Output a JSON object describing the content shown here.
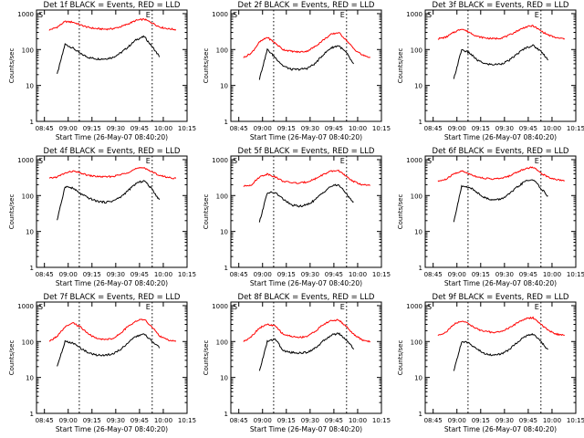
{
  "shared": {
    "xlabel": "Start Time (26-May-07 08:40:20)",
    "ylabel": "Counts/sec",
    "x_ticks": [
      "08:45",
      "09:00",
      "09:15",
      "09:30",
      "09:45",
      "10:00",
      "10:15"
    ],
    "y_ticks": [
      "1",
      "10",
      "100",
      "1000"
    ],
    "marker_left": "S",
    "marker_right": "E",
    "colors": {
      "events": "#000000",
      "lld": "#ff0000",
      "axes": "#000000"
    }
  },
  "chart_data": [
    {
      "type": "line",
      "title": "Det 1f BLACK = Events, RED = LLD",
      "x_minutes": [
        0,
        5,
        10,
        15,
        20,
        25,
        30,
        35,
        40,
        45,
        50,
        55,
        60,
        65,
        70,
        75,
        80
      ],
      "series": [
        {
          "name": "Events",
          "start": 5,
          "end": 75,
          "values": [
            null,
            20,
            140,
            110,
            75,
            60,
            55,
            55,
            60,
            80,
            120,
            190,
            230,
            120,
            60,
            null,
            null
          ]
        },
        {
          "name": "LLD",
          "values": [
            350,
            420,
            600,
            580,
            480,
            410,
            380,
            370,
            380,
            430,
            520,
            650,
            700,
            550,
            420,
            380,
            360
          ]
        }
      ],
      "ylim": [
        1,
        1000
      ],
      "scale": "log"
    },
    {
      "type": "line",
      "title": "Det 2f BLACK = Events, RED = LLD",
      "x_minutes": [
        0,
        5,
        10,
        15,
        20,
        25,
        30,
        35,
        40,
        45,
        50,
        55,
        60,
        65,
        70,
        75,
        80
      ],
      "series": [
        {
          "name": "Events",
          "start": 10,
          "end": 75,
          "values": [
            null,
            null,
            15,
            100,
            60,
            35,
            28,
            28,
            30,
            40,
            70,
            110,
            130,
            80,
            35,
            null,
            null
          ]
        },
        {
          "name": "LLD",
          "values": [
            60,
            80,
            160,
            220,
            150,
            100,
            90,
            85,
            90,
            120,
            180,
            260,
            300,
            180,
            100,
            70,
            60
          ]
        }
      ],
      "ylim": [
        1,
        1000
      ],
      "scale": "log"
    },
    {
      "type": "line",
      "title": "Det 3f BLACK = Events, RED = LLD",
      "x_minutes": [
        0,
        5,
        10,
        15,
        20,
        25,
        30,
        35,
        40,
        45,
        50,
        55,
        60,
        65,
        70,
        75,
        80
      ],
      "series": [
        {
          "name": "Events",
          "start": 10,
          "end": 75,
          "values": [
            null,
            null,
            15,
            100,
            80,
            50,
            40,
            38,
            40,
            50,
            75,
            110,
            130,
            90,
            50,
            null,
            null
          ]
        },
        {
          "name": "LLD",
          "values": [
            200,
            220,
            300,
            380,
            300,
            230,
            210,
            200,
            210,
            250,
            330,
            420,
            460,
            330,
            250,
            210,
            200
          ]
        }
      ],
      "ylim": [
        1,
        1000
      ],
      "scale": "log"
    },
    {
      "type": "line",
      "title": "Det 4f BLACK = Events, RED = LLD",
      "x_minutes": [
        0,
        5,
        10,
        15,
        20,
        25,
        30,
        35,
        40,
        45,
        50,
        55,
        60,
        65,
        70,
        75,
        80
      ],
      "series": [
        {
          "name": "Events",
          "start": 5,
          "end": 75,
          "values": [
            null,
            20,
            180,
            160,
            110,
            85,
            70,
            65,
            70,
            90,
            140,
            220,
            260,
            150,
            70,
            null,
            null
          ]
        },
        {
          "name": "LLD",
          "values": [
            300,
            330,
            420,
            480,
            420,
            360,
            340,
            330,
            340,
            380,
            450,
            560,
            600,
            450,
            360,
            320,
            300
          ]
        }
      ],
      "ylim": [
        1,
        1000
      ],
      "scale": "log"
    },
    {
      "type": "line",
      "title": "Det 5f BLACK = Events, RED = LLD",
      "x_minutes": [
        0,
        5,
        10,
        15,
        20,
        25,
        30,
        35,
        40,
        45,
        50,
        55,
        60,
        65,
        70,
        75,
        80
      ],
      "series": [
        {
          "name": "Events",
          "start": 10,
          "end": 75,
          "values": [
            null,
            null,
            18,
            120,
            120,
            80,
            55,
            50,
            55,
            75,
            120,
            180,
            200,
            110,
            60,
            null,
            null
          ]
        },
        {
          "name": "LLD",
          "values": [
            180,
            200,
            330,
            400,
            330,
            250,
            230,
            220,
            240,
            290,
            380,
            470,
            500,
            330,
            240,
            200,
            190
          ]
        }
      ],
      "ylim": [
        1,
        1000
      ],
      "scale": "log"
    },
    {
      "type": "line",
      "title": "Det 6f BLACK = Events, RED = LLD",
      "x_minutes": [
        0,
        5,
        10,
        15,
        20,
        25,
        30,
        35,
        40,
        45,
        50,
        55,
        60,
        65,
        70,
        75,
        80
      ],
      "series": [
        {
          "name": "Events",
          "start": 10,
          "end": 75,
          "values": [
            null,
            null,
            18,
            180,
            170,
            120,
            85,
            75,
            80,
            110,
            170,
            250,
            280,
            160,
            90,
            null,
            null
          ]
        },
        {
          "name": "LLD",
          "values": [
            250,
            280,
            400,
            480,
            400,
            330,
            300,
            290,
            300,
            350,
            450,
            560,
            620,
            420,
            320,
            280,
            260
          ]
        }
      ],
      "ylim": [
        1,
        1000
      ],
      "scale": "log"
    },
    {
      "type": "line",
      "title": "Det 7f BLACK = Events, RED = LLD",
      "x_minutes": [
        0,
        5,
        10,
        15,
        20,
        25,
        30,
        35,
        40,
        45,
        50,
        55,
        60,
        65,
        70,
        75,
        80
      ],
      "series": [
        {
          "name": "Events",
          "start": 5,
          "end": 75,
          "values": [
            null,
            20,
            100,
            90,
            65,
            48,
            42,
            42,
            45,
            60,
            95,
            140,
            160,
            100,
            65,
            null,
            null
          ]
        },
        {
          "name": "LLD",
          "values": [
            100,
            140,
            250,
            330,
            250,
            160,
            120,
            115,
            120,
            170,
            270,
            380,
            420,
            250,
            140,
            110,
            100
          ]
        }
      ],
      "ylim": [
        1,
        1000
      ],
      "scale": "log"
    },
    {
      "type": "line",
      "title": "Det 8f BLACK = Events, RED = LLD",
      "x_minutes": [
        0,
        5,
        10,
        15,
        20,
        25,
        30,
        35,
        40,
        45,
        50,
        55,
        60,
        65,
        70,
        75,
        80
      ],
      "series": [
        {
          "name": "Events",
          "start": 10,
          "end": 75,
          "values": [
            null,
            null,
            15,
            100,
            120,
            55,
            50,
            48,
            50,
            65,
            100,
            150,
            170,
            110,
            60,
            null,
            null
          ]
        },
        {
          "name": "LLD",
          "values": [
            100,
            140,
            240,
            300,
            270,
            160,
            140,
            130,
            140,
            190,
            290,
            380,
            400,
            260,
            150,
            110,
            100
          ]
        }
      ],
      "ylim": [
        1,
        1000
      ],
      "scale": "log"
    },
    {
      "type": "line",
      "title": "Det 9f BLACK = Events, RED = LLD",
      "x_minutes": [
        0,
        5,
        10,
        15,
        20,
        25,
        30,
        35,
        40,
        45,
        50,
        55,
        60,
        65,
        70,
        75,
        80
      ],
      "series": [
        {
          "name": "Events",
          "start": 10,
          "end": 75,
          "values": [
            null,
            null,
            15,
            100,
            90,
            60,
            45,
            42,
            45,
            60,
            95,
            140,
            160,
            100,
            55,
            null,
            null
          ]
        },
        {
          "name": "LLD",
          "values": [
            150,
            180,
            300,
            380,
            300,
            220,
            190,
            180,
            190,
            240,
            330,
            430,
            460,
            300,
            200,
            160,
            150
          ]
        }
      ],
      "ylim": [
        1,
        1000
      ],
      "scale": "log"
    }
  ]
}
